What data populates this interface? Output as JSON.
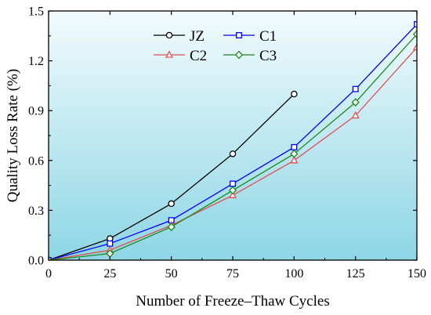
{
  "chart_data": {
    "type": "line",
    "xlabel": "Number of Freeze–Thaw Cycles",
    "ylabel": "Quality Loss Rate (%)",
    "xlim": [
      0,
      150
    ],
    "ylim": [
      0,
      1.5
    ],
    "x_ticks": [
      "0",
      "25",
      "50",
      "75",
      "100",
      "125",
      "150"
    ],
    "y_ticks": [
      "0.0",
      "0.3",
      "0.6",
      "0.9",
      "1.2",
      "1.5"
    ],
    "background_color": "#8ed6e6",
    "legend_placement": "top-center",
    "series": [
      {
        "name": "JZ",
        "color": "#000000",
        "marker": "circle",
        "x": [
          0,
          25,
          50,
          75,
          100
        ],
        "y": [
          0,
          0.13,
          0.34,
          0.64,
          1.0
        ]
      },
      {
        "name": "C1",
        "color": "#0000ff",
        "marker": "square",
        "x": [
          0,
          25,
          50,
          75,
          100,
          125,
          150
        ],
        "y": [
          0,
          0.1,
          0.24,
          0.46,
          0.68,
          1.03,
          1.42
        ]
      },
      {
        "name": "C2",
        "color": "#e05050",
        "marker": "triangle",
        "x": [
          0,
          25,
          50,
          75,
          100,
          125,
          150
        ],
        "y": [
          0,
          0.06,
          0.21,
          0.39,
          0.6,
          0.87,
          1.28
        ]
      },
      {
        "name": "C3",
        "color": "#1a8a1a",
        "marker": "diamond",
        "x": [
          0,
          25,
          50,
          75,
          100,
          125,
          150
        ],
        "y": [
          0,
          0.04,
          0.2,
          0.42,
          0.64,
          0.95,
          1.36
        ]
      }
    ]
  }
}
